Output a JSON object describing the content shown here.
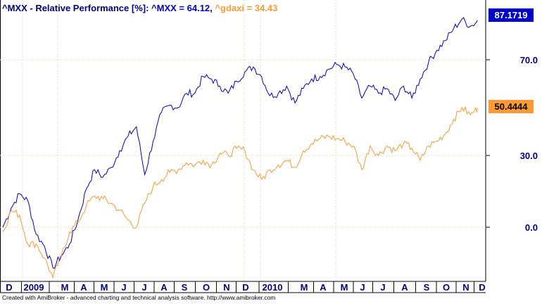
{
  "chart_data": {
    "type": "line",
    "title": {
      "prefix": "^MXX - Relative Performance [%]: ",
      "series1_label": "^MXX = 64.12",
      "separator": ", ",
      "series2_label": "^gdaxi = 34.43"
    },
    "ylim": [
      -25,
      95
    ],
    "yticks": [
      0.0,
      30.0,
      70.0
    ],
    "ytick_labels": [
      "0.0",
      "30.0",
      "70.0"
    ],
    "x_labels": [
      "D",
      "2009",
      "M",
      "A",
      "M",
      "J",
      "J",
      "A",
      "S",
      "O",
      "N",
      "D",
      "2010",
      "M",
      "A",
      "M",
      "J",
      "J",
      "A",
      "S",
      "O",
      "N",
      "D"
    ],
    "grid": true,
    "series": [
      {
        "name": "^MXX",
        "color": "#0000c8",
        "last_value_label": "87.1719",
        "values": [
          0,
          8,
          14,
          11,
          -3,
          -8,
          -17,
          -12,
          -7,
          3,
          16,
          24,
          21,
          25,
          32,
          38,
          42,
          22,
          36,
          48,
          51,
          50,
          56,
          56,
          63,
          62,
          59,
          56,
          61,
          65,
          67,
          63,
          55,
          56,
          59,
          52,
          58,
          62,
          63,
          66,
          68,
          67,
          64,
          54,
          59,
          56,
          58,
          53,
          59,
          54,
          62,
          69,
          74,
          78,
          83,
          87,
          84,
          86.5
        ]
      },
      {
        "name": "^gdaxi",
        "color": "#ff9933",
        "last_value_label": "50.4444",
        "values": [
          -2,
          7,
          5,
          -7,
          -7,
          -13,
          -21,
          -12,
          -2,
          2,
          9,
          13,
          12,
          10,
          7,
          3,
          0,
          10,
          17,
          20,
          23,
          24,
          27,
          26,
          28,
          26,
          31,
          30,
          33,
          32,
          24,
          20,
          24,
          26,
          28,
          25,
          32,
          35,
          37,
          38,
          37,
          36,
          34,
          24,
          34,
          30,
          34,
          32,
          35,
          33,
          28,
          34,
          36,
          39,
          45,
          50,
          47,
          50
        ]
      }
    ]
  },
  "footer": {
    "credit": "Created with AmiBroker - advanced charting and technical analysis software. http://www.amibroker.com"
  },
  "colors": {
    "axis": "#000000",
    "tick_text": "#000080",
    "grid": "#e8e0c8",
    "title_text": "#000080"
  }
}
